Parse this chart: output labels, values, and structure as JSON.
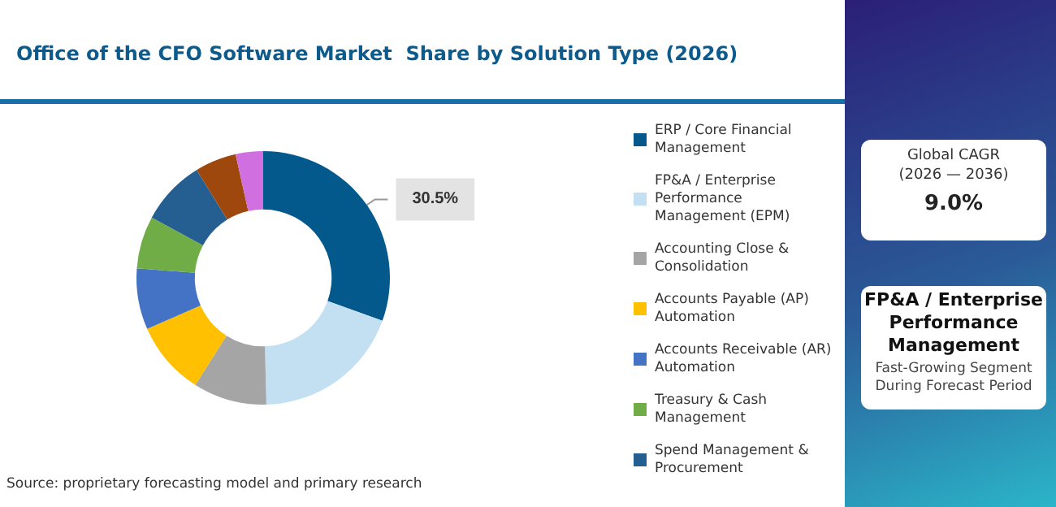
{
  "chart_data": {
    "type": "donut",
    "title": "Office of the CFO Software Market  Share by Solution Type (2026)",
    "categories": [
      "ERP / Core Financial Management",
      "FP&A / Enterprise Performance Management (EPM)",
      "Accounting Close & Consolidation",
      "Accounts Payable (AP) Automation",
      "Accounts Receivable (AR) Automation",
      "Treasury & Cash Management",
      "Spend Management & Procurement",
      null,
      null
    ],
    "values": [
      30.5,
      19.1,
      9.4,
      9.4,
      7.8,
      6.7,
      8.3,
      5.3,
      3.5
    ],
    "colors": [
      "#03588c",
      "#c3e0f2",
      "#a5a5a5",
      "#fec000",
      "#4472c4",
      "#70ad47",
      "#255e91",
      "#9e480e",
      "#cf6fe0"
    ],
    "value_labels": [
      "30.5%",
      null,
      null,
      null,
      null,
      null,
      null,
      null,
      null
    ],
    "legend": "right",
    "annotations": [
      "Global CAGR\n(2026 — 2036)",
      "9.0%",
      "FP&A / Enterprise Performance Management",
      "Fast-Growing Segment During Forecast Period",
      "Source: proprietary forecasting model and primary research"
    ]
  }
}
